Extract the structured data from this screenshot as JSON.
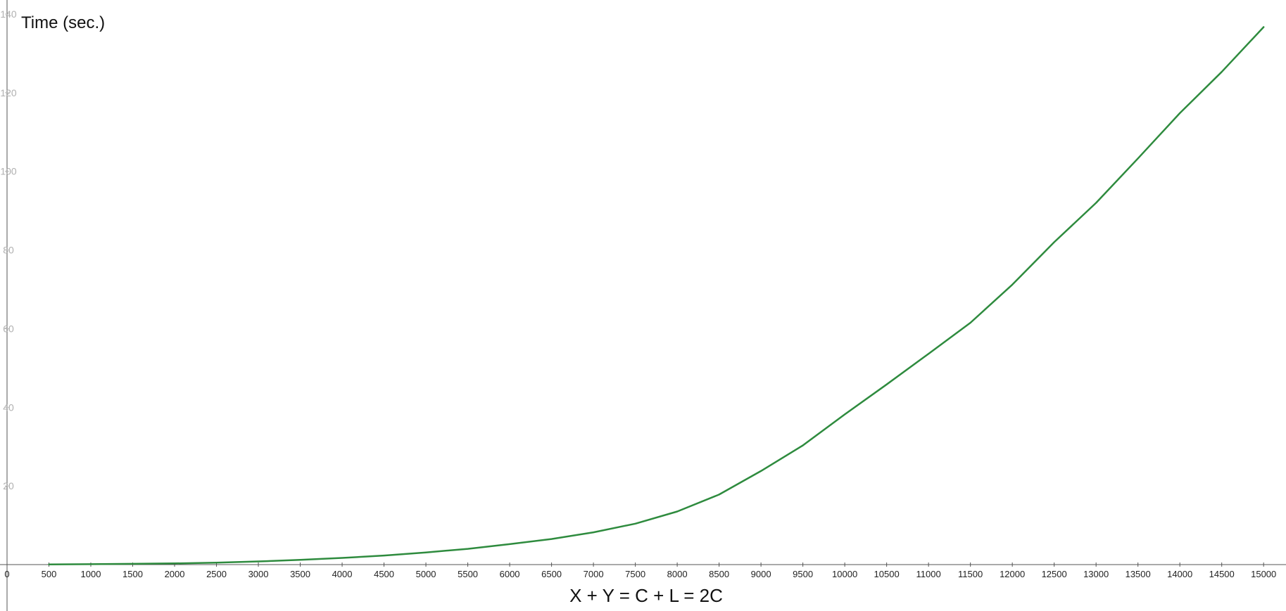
{
  "chart_data": {
    "type": "line",
    "ylabel": "Time (sec.)",
    "xlabel": "X + Y = C + L = 2C",
    "xlim": [
      0,
      15200
    ],
    "ylim": [
      0,
      140
    ],
    "x_ticks": [
      0,
      500,
      1000,
      1500,
      2000,
      2500,
      3000,
      3500,
      4000,
      4500,
      5000,
      5500,
      6000,
      6500,
      7000,
      7500,
      8000,
      8500,
      9000,
      9500,
      10000,
      10500,
      11000,
      11500,
      12000,
      12500,
      13000,
      13500,
      14000,
      14500,
      15000
    ],
    "y_ticks": [
      20,
      40,
      60,
      80,
      100,
      120,
      140
    ],
    "grid": false,
    "colors": {
      "line": "#2e8b3e",
      "axis": "#555555",
      "ytick_text": "#b0b0b0"
    },
    "series": [
      {
        "x": [
          500,
          1000,
          1500,
          2000,
          2500,
          3000,
          3500,
          4000,
          4500,
          5000,
          5500,
          6000,
          6500,
          7000,
          7500,
          8000,
          8500,
          9000,
          9500,
          10000,
          10500,
          11000,
          11500,
          12000,
          12500,
          13000,
          13500,
          14000,
          14500,
          15000
        ],
        "y": [
          0.05,
          0.1,
          0.2,
          0.3,
          0.5,
          0.8,
          1.2,
          1.7,
          2.3,
          3.1,
          4.0,
          5.2,
          6.5,
          8.2,
          10.4,
          13.5,
          17.8,
          23.8,
          30.3,
          38.2,
          45.8,
          53.6,
          61.5,
          71.2,
          82.0,
          92.0,
          103.3,
          114.8,
          125.3,
          136.7
        ]
      }
    ]
  }
}
